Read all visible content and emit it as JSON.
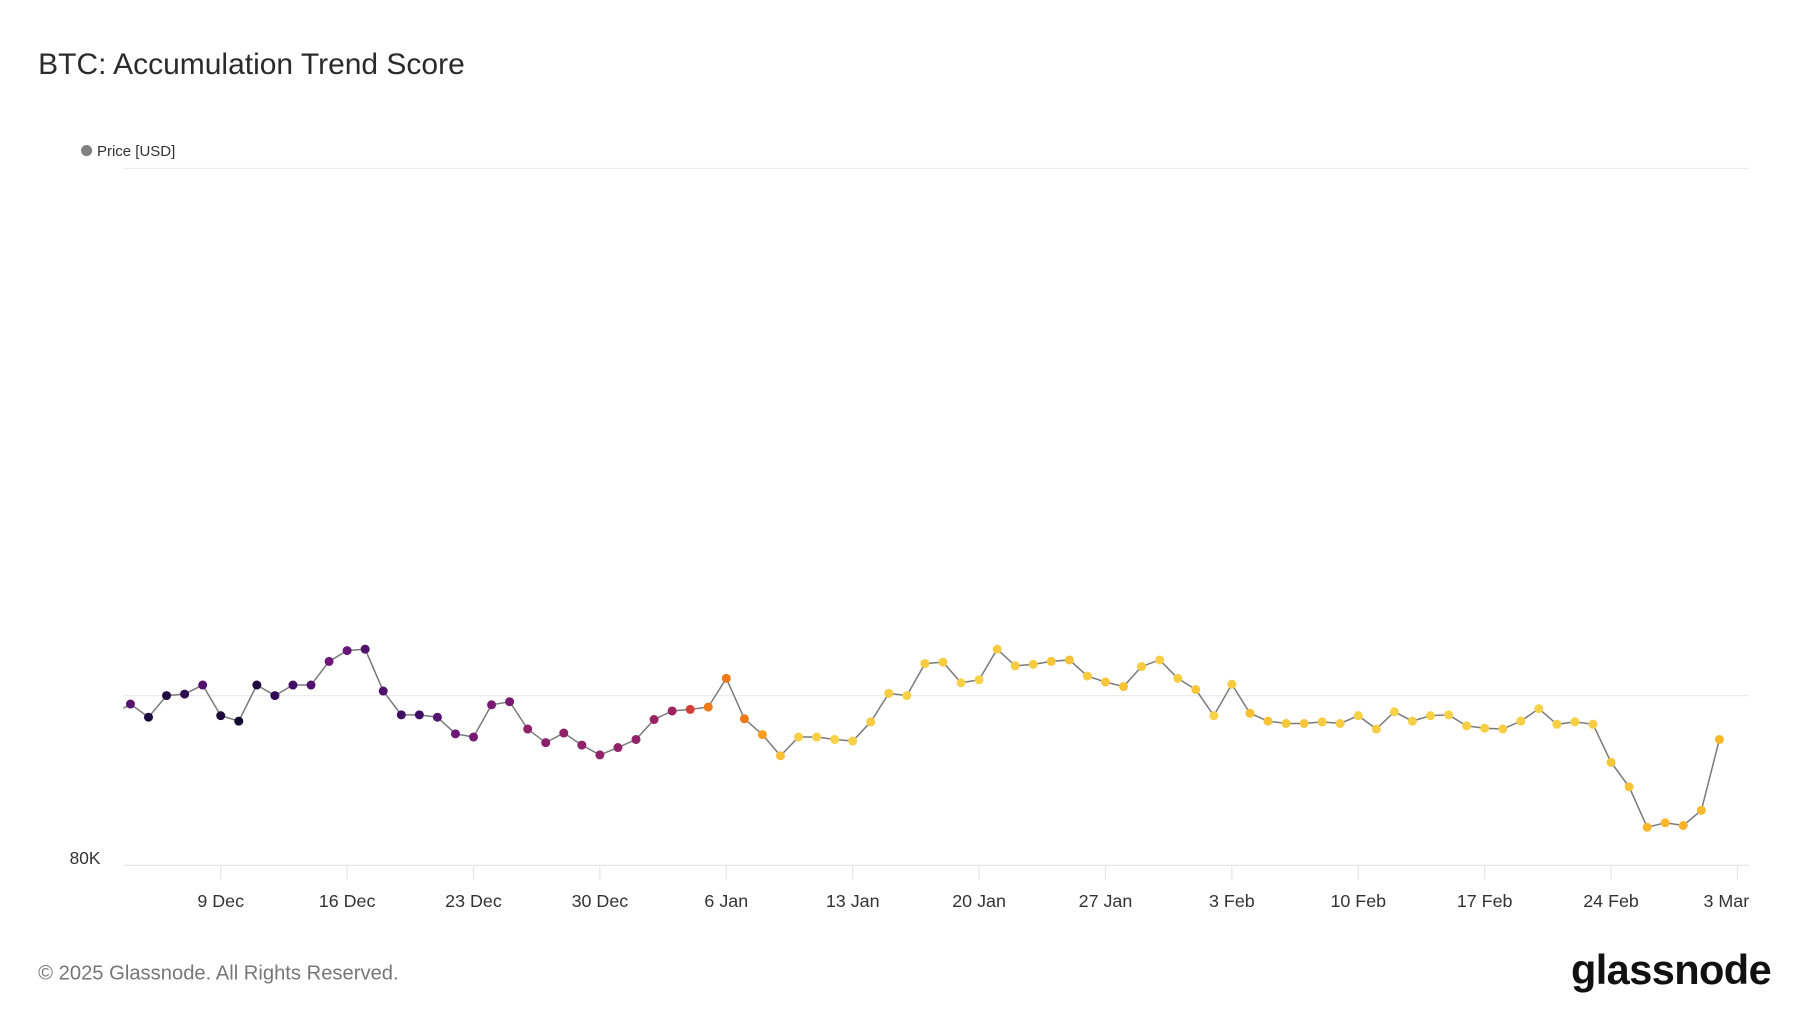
{
  "header": {
    "title": "BTC: Accumulation Trend Score"
  },
  "footer": {
    "copyright": "© 2025 Glassnode. All Rights Reserved.",
    "logo": "glassnode"
  },
  "colors": {
    "line": "#7a7a7a",
    "grid": "#ececec",
    "legend_dot": "#808080",
    "colormap": [
      "#0b0a2a",
      "#3e0e63",
      "#6a177a",
      "#9b2363",
      "#d9452f",
      "#f57f15",
      "#fbb125",
      "#f6db4f"
    ]
  },
  "chart_data": {
    "type": "scatter",
    "title": "BTC: Accumulation Trend Score",
    "legend": [
      {
        "label": "Price [USD]",
        "placement": "top-left"
      }
    ],
    "y_scale": "log",
    "ylim": [
      80000,
      200000
    ],
    "gridlines": [
      100000,
      200000
    ],
    "y_ticks": [
      {
        "value": 80000,
        "label": "80K"
      }
    ],
    "x_start": "3 Dec",
    "x_step_days": 1,
    "x_ticks": [
      {
        "index": 6,
        "label": "9 Dec"
      },
      {
        "index": 13,
        "label": "16 Dec"
      },
      {
        "index": 20,
        "label": "23 Dec"
      },
      {
        "index": 27,
        "label": "30 Dec"
      },
      {
        "index": 34,
        "label": "6 Jan"
      },
      {
        "index": 41,
        "label": "13 Jan"
      },
      {
        "index": 48,
        "label": "20 Jan"
      },
      {
        "index": 55,
        "label": "27 Jan"
      },
      {
        "index": 62,
        "label": "3 Feb"
      },
      {
        "index": 69,
        "label": "10 Feb"
      },
      {
        "index": 76,
        "label": "17 Feb"
      },
      {
        "index": 83,
        "label": "24 Feb"
      },
      {
        "index": 90,
        "label": "3 Mar"
      }
    ],
    "series": [
      {
        "name": "Price [USD]",
        "values": [
          97500,
          98900,
          97200,
          100000,
          100200,
          101400,
          97400,
          96700,
          101400,
          100000,
          101400,
          101400,
          104600,
          106100,
          106300,
          100600,
          97500,
          97500,
          97200,
          95100,
          94700,
          98800,
          99200,
          95700,
          94000,
          95200,
          93700,
          92500,
          93400,
          94400,
          96900,
          98000,
          98200,
          98500,
          102300,
          97000,
          95000,
          92400,
          94700,
          94700,
          94400,
          94200,
          96600,
          100300,
          100000,
          104300,
          104500,
          101700,
          102100,
          106300,
          104000,
          104200,
          104600,
          104800,
          102600,
          101800,
          101200,
          103900,
          104800,
          102300,
          100800,
          97400,
          101500,
          97700,
          96700,
          96400,
          96400,
          96600,
          96400,
          97400,
          95700,
          97900,
          96700,
          97400,
          97500,
          96100,
          95800,
          95700,
          96700,
          98300,
          96300,
          96600,
          96300,
          91600,
          88700,
          84100,
          84600,
          84300,
          86000,
          94400
        ],
        "accumulation_score": [
          null,
          0.22,
          0.05,
          0.06,
          0.1,
          0.2,
          0.05,
          0.03,
          0.05,
          0.1,
          0.15,
          0.2,
          0.3,
          0.28,
          0.2,
          0.2,
          0.15,
          0.15,
          0.22,
          0.3,
          0.32,
          0.33,
          0.32,
          0.4,
          0.38,
          0.4,
          0.4,
          0.4,
          0.4,
          0.4,
          0.42,
          0.43,
          0.55,
          0.7,
          0.7,
          0.7,
          0.8,
          0.9,
          0.97,
          0.97,
          0.97,
          0.97,
          0.95,
          0.95,
          0.97,
          0.95,
          0.95,
          0.97,
          0.97,
          0.95,
          0.95,
          0.95,
          0.93,
          0.92,
          0.95,
          0.93,
          0.92,
          0.95,
          0.96,
          0.95,
          0.94,
          0.97,
          0.95,
          0.9,
          0.92,
          0.93,
          0.93,
          0.95,
          0.95,
          0.97,
          0.95,
          0.97,
          0.96,
          0.97,
          0.97,
          0.96,
          0.96,
          0.96,
          0.96,
          0.97,
          0.96,
          0.96,
          0.95,
          0.93,
          0.92,
          0.88,
          0.88,
          0.86,
          0.88,
          0.88
        ]
      }
    ]
  }
}
